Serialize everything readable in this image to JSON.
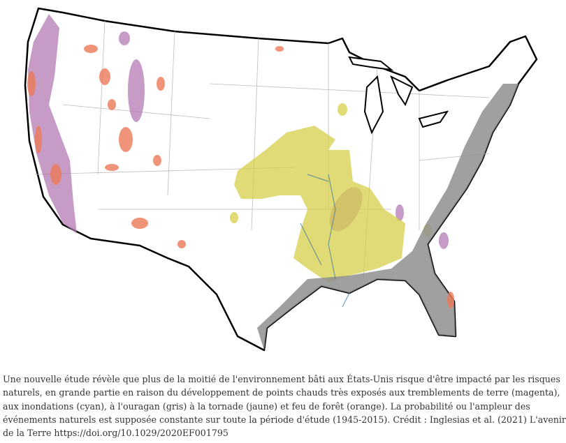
{
  "caption": {
    "lines": [
      "Une nouvelle étude révèle que plus de la moitié de l'environnement bâti aux États-Unis risque d'être impacté par les risques",
      "naturels, en grande partie en raison du développement de points chauds très exposés aux tremblements de terre (magenta),",
      "aux inondations (cyan), à l'ouragan (gris) à la tornade (jaune) et feu de forêt (orange). La probabilité ou l'ampleur des",
      "événements naturels est supposée constante sur toute la période d'étude (1945-2015). Crédit : Inglesias et al. (2021) L'avenir",
      "de la Terre https://doi.org/10.1029/2020EF001795"
    ]
  }
}
